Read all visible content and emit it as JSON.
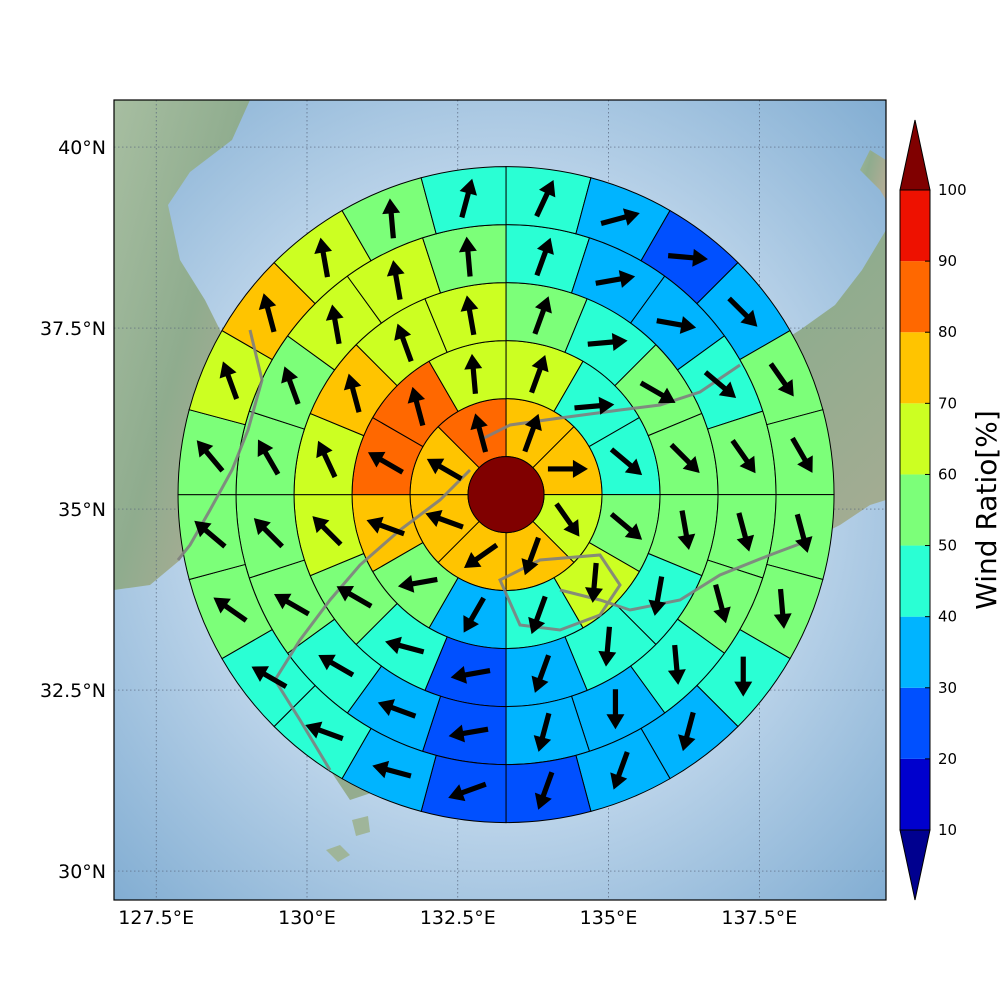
{
  "chart_data": {
    "type": "heatmap",
    "subtype": "polar-sector-map-with-wind-vectors",
    "title": "",
    "map": {
      "lon_range": [
        126.8,
        139.6
      ],
      "lat_range": [
        29.6,
        40.65
      ],
      "lon_ticks": [
        "127.5°E",
        "130°E",
        "132.5°E",
        "135°E",
        "137.5°E"
      ],
      "lon_tick_values": [
        127.5,
        130,
        132.5,
        135,
        137.5
      ],
      "lat_ticks": [
        "30°N",
        "32.5°N",
        "35°N",
        "37.5°N",
        "40°N"
      ],
      "lat_tick_values": [
        30,
        32.5,
        35,
        37.5,
        40
      ],
      "grid": true,
      "center": [
        133.3,
        35.2
      ]
    },
    "colorbar": {
      "label": "Wind Ratio[%]",
      "tick_labels": [
        "10",
        "20",
        "30",
        "40",
        "50",
        "60",
        "70",
        "80",
        "90",
        "100"
      ],
      "bounds": [
        10,
        20,
        30,
        40,
        50,
        60,
        70,
        80,
        90,
        100
      ],
      "colors": [
        "#0000cd",
        "#0050ff",
        "#00b4ff",
        "#2affd4",
        "#7cff79",
        "#ccff22",
        "#ffc400",
        "#ff6800",
        "#ee1100"
      ],
      "under_color": "#00008f",
      "over_color": "#800000",
      "extend": "both"
    },
    "center_value": 100,
    "rings": [
      {
        "ring": 1,
        "sectors": 8,
        "ratios": [
          75,
          75,
          65,
          75,
          75,
          75,
          75,
          85
        ],
        "wind_dir_deg": [
          20,
          90,
          145,
          200,
          235,
          290,
          300,
          345
        ]
      },
      {
        "ring": 2,
        "sectors": 12,
        "ratios": [
          65,
          45,
          45,
          55,
          65,
          45,
          35,
          55,
          75,
          85,
          85,
          65
        ],
        "wind_dir_deg": [
          20,
          85,
          130,
          130,
          185,
          200,
          210,
          260,
          290,
          300,
          345,
          355
        ]
      },
      {
        "ring": 3,
        "sectors": 16,
        "ratios": [
          55,
          45,
          55,
          55,
          55,
          45,
          45,
          35,
          25,
          45,
          55,
          65,
          65,
          75,
          65,
          65
        ],
        "wind_dir_deg": [
          20,
          85,
          120,
          135,
          170,
          190,
          185,
          200,
          260,
          285,
          300,
          315,
          335,
          345,
          340,
          350
        ],
        "wind_dir_deg_note": ""
      },
      {
        "ring": 4,
        "sectors": 20,
        "ratios": [
          45,
          35,
          35,
          45,
          55,
          55,
          55,
          45,
          35,
          35,
          25,
          35,
          45,
          55,
          55,
          55,
          55,
          65,
          65,
          55
        ],
        "wind_dir_deg": [
          20,
          80,
          100,
          130,
          145,
          165,
          165,
          175,
          180,
          195,
          260,
          290,
          300,
          300,
          315,
          330,
          340,
          350,
          350,
          355
        ]
      },
      {
        "ring": 5,
        "sectors": 24,
        "ratios": [
          45,
          35,
          25,
          35,
          55,
          55,
          55,
          55,
          45,
          35,
          35,
          25,
          25,
          35,
          45,
          45,
          55,
          55,
          55,
          65,
          75,
          65,
          55,
          45
        ],
        "wind_dir_deg": [
          25,
          75,
          95,
          135,
          145,
          150,
          165,
          175,
          180,
          195,
          200,
          200,
          250,
          285,
          290,
          300,
          305,
          310,
          320,
          340,
          345,
          350,
          355,
          15
        ]
      }
    ]
  }
}
